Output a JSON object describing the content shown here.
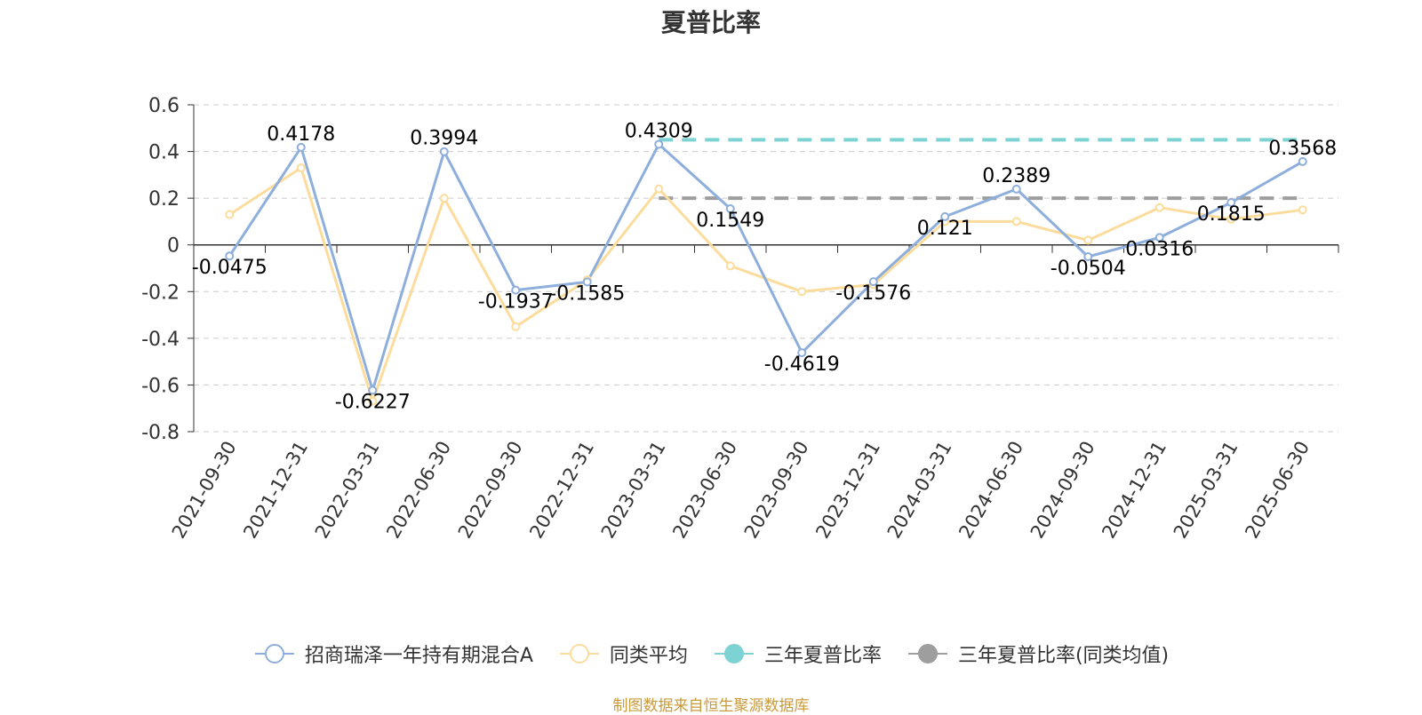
{
  "title": "夏普比率",
  "source_note": "制图数据来自恒生聚源数据库",
  "colors": {
    "fund": "#8eaedc",
    "avg": "#fcdc9c",
    "fund3y": "#7dd3d3",
    "avg3y": "#9e9e9e",
    "grid": "#cccccc",
    "axis": "#333333"
  },
  "legend": [
    {
      "label": "招商瑞泽一年持有期混合A",
      "color": "#8eaedc",
      "marker": "hollow-circle"
    },
    {
      "label": "同类平均",
      "color": "#fcdc9c",
      "marker": "hollow-circle"
    },
    {
      "label": "三年夏普比率",
      "color": "#7dd3d3",
      "marker": "filled-circle"
    },
    {
      "label": "三年夏普比率(同类均值)",
      "color": "#9e9e9e",
      "marker": "filled-circle"
    }
  ],
  "chart_data": {
    "type": "line",
    "title": "夏普比率",
    "categories": [
      "2021-09-30",
      "2021-12-31",
      "2022-03-31",
      "2022-06-30",
      "2022-09-30",
      "2022-12-31",
      "2023-03-31",
      "2023-06-30",
      "2023-09-30",
      "2023-12-31",
      "2024-03-31",
      "2024-06-30",
      "2024-09-30",
      "2024-12-31",
      "2025-03-31",
      "2025-06-30"
    ],
    "ylim": [
      -0.8,
      0.6
    ],
    "yticks": [
      0.6,
      0.4,
      0.2,
      0,
      -0.2,
      -0.4,
      -0.6,
      -0.8
    ],
    "ytick_labels": [
      "0.6",
      "0.4",
      "0.2",
      "0",
      "-0.2",
      "-0.4",
      "-0.6",
      "-0.8"
    ],
    "grid": true,
    "legend_position": "bottom",
    "series": [
      {
        "name": "招商瑞泽一年持有期混合A",
        "values": [
          -0.0475,
          0.4178,
          -0.6227,
          0.3994,
          -0.1937,
          -0.1585,
          0.4309,
          0.1549,
          -0.4619,
          -0.1576,
          0.121,
          0.2389,
          -0.0504,
          0.0316,
          0.1815,
          0.3568
        ],
        "labels": [
          "-0.0475",
          "0.4178",
          "-0.6227",
          "0.3994",
          "-0.1937",
          "-0.1585",
          "0.4309",
          "0.1549",
          "-0.4619",
          "-0.1576",
          "0.121",
          "0.2389",
          "-0.0504",
          "0.0316",
          "0.1815",
          "0.3568"
        ]
      },
      {
        "name": "同类平均",
        "values": [
          0.13,
          0.33,
          -0.67,
          0.2,
          -0.35,
          -0.15,
          0.24,
          -0.09,
          -0.2,
          -0.17,
          0.1,
          0.1,
          0.02,
          0.16,
          0.11,
          0.15
        ]
      },
      {
        "name": "三年夏普比率",
        "style": "dashed",
        "from": "2023-03-31",
        "to": "2025-06-30",
        "value": 0.45
      },
      {
        "name": "三年夏普比率(同类均值)",
        "style": "dashed",
        "from": "2023-03-31",
        "to": "2025-06-30",
        "value": 0.2
      }
    ]
  }
}
